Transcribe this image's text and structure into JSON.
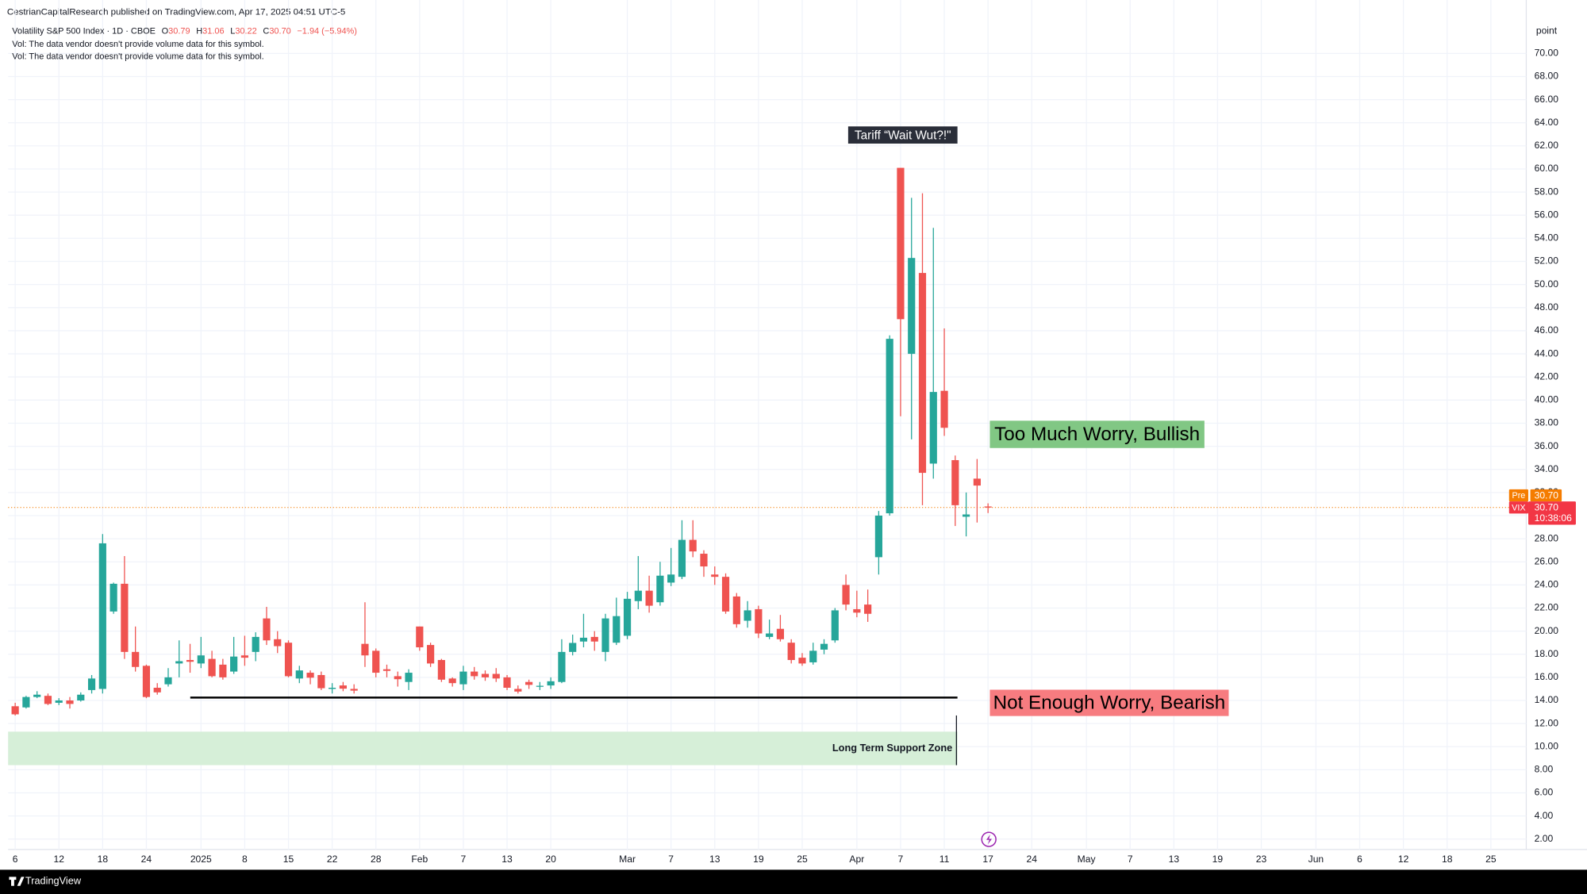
{
  "header": {
    "published": "CestrianCapitalResearch published on TradingView.com, Apr 17, 2025 04:51 UTC-5"
  },
  "footer": {
    "brand": "TradingView"
  },
  "chart_data": {
    "type": "candlestick",
    "legend": {
      "symbol": "Volatility S&P 500 Index · 1D · CBOE",
      "fields": [
        {
          "key": "O",
          "label": "30.79"
        },
        {
          "key": "H",
          "label": "31.06"
        },
        {
          "key": "L",
          "label": "30.22"
        },
        {
          "key": "C",
          "label": "30.70"
        }
      ],
      "change": "−1.94 (−5.94%)",
      "notes": [
        "Vol: The data vendor doesn't provide volume data for this symbol.",
        "Vol: The data vendor doesn't provide volume data for this symbol."
      ]
    },
    "y_unit": "point",
    "categories": [
      "6",
      null,
      null,
      null,
      "12",
      null,
      null,
      null,
      "18",
      null,
      null,
      null,
      "24",
      null,
      null,
      null,
      null,
      "2025",
      null,
      null,
      null,
      "8",
      null,
      null,
      null,
      "15",
      null,
      null,
      null,
      "22",
      null,
      null,
      null,
      "28",
      null,
      null,
      null,
      "Feb",
      null,
      null,
      null,
      "7",
      null,
      null,
      null,
      "13",
      null,
      null,
      null,
      "20",
      null,
      null,
      null,
      null,
      null,
      null,
      "Mar",
      null,
      null,
      null,
      "7",
      null,
      null,
      null,
      "13",
      null,
      null,
      null,
      "19",
      null,
      null,
      null,
      "25",
      null,
      null,
      null,
      null,
      "Apr",
      null,
      null,
      null,
      "7",
      null,
      null,
      null,
      "11",
      null,
      null,
      null,
      "17",
      null,
      null,
      null,
      "24",
      null,
      null,
      null,
      null,
      "May",
      null,
      null,
      null,
      "7",
      null,
      null,
      null,
      "13",
      null,
      null,
      null,
      "19",
      null,
      null,
      null,
      "23",
      null,
      null,
      null,
      null,
      "Jun",
      null,
      null,
      null,
      "6",
      null,
      null,
      null,
      "12",
      null,
      null,
      null,
      "18",
      null,
      null,
      null,
      "25"
    ],
    "open": [
      13.5,
      13.4,
      14.3,
      14.4,
      13.8,
      14.0,
      14.0,
      14.9,
      15.0,
      21.7,
      24.1,
      18.2,
      17.0,
      15.1,
      15.4,
      17.2,
      17.5,
      17.2,
      17.6,
      17.1,
      16.5,
      17.9,
      18.2,
      21.1,
      19.3,
      19.0,
      15.9,
      16.4,
      16.2,
      15.0,
      15.3,
      15.0,
      18.9,
      18.3,
      16.7,
      16.1,
      15.6,
      20.4,
      18.8,
      17.5,
      15.9,
      15.4,
      16.5,
      16.3,
      16.3,
      16.0,
      15.0,
      15.6,
      15.2,
      15.3,
      15.6,
      18.2,
      19.1,
      19.5,
      18.2,
      19.0,
      19.6,
      22.6,
      23.5,
      22.5,
      24.2,
      24.7,
      27.9,
      26.7,
      24.9,
      24.7,
      23.0,
      20.9,
      21.9,
      19.5,
      20.2,
      19.0,
      17.7,
      17.3,
      18.4,
      19.2,
      24.0,
      21.9,
      22.3,
      26.4,
      30.2,
      60.1,
      44.0,
      51.0,
      34.5,
      40.8,
      34.8,
      29.9,
      33.2,
      30.79,
      null,
      null,
      null,
      null,
      null,
      null,
      null,
      null,
      null,
      null,
      null,
      null,
      null,
      null,
      null,
      null,
      null,
      null,
      null,
      null,
      null,
      null,
      null,
      null,
      null,
      null,
      null,
      null,
      null,
      null,
      null,
      null,
      null,
      null,
      null,
      null,
      null,
      null,
      null,
      null,
      null,
      null,
      null,
      null,
      null,
      null
    ],
    "high": [
      13.8,
      14.4,
      14.8,
      14.6,
      14.2,
      14.3,
      14.7,
      16.2,
      28.4,
      24.2,
      26.5,
      20.4,
      17.1,
      15.5,
      16.8,
      19.2,
      18.9,
      19.5,
      18.3,
      17.6,
      19.5,
      19.6,
      19.9,
      22.1,
      20.0,
      19.2,
      17.0,
      16.6,
      16.5,
      15.5,
      15.6,
      15.4,
      22.5,
      18.5,
      17.1,
      16.5,
      16.7,
      20.4,
      19.0,
      17.6,
      16.0,
      17.0,
      16.9,
      16.6,
      16.8,
      16.2,
      15.3,
      15.8,
      15.6,
      16.0,
      19.3,
      19.7,
      21.5,
      20.0,
      21.5,
      22.9,
      23.4,
      26.5,
      24.8,
      26.0,
      27.2,
      29.6,
      29.6,
      27.0,
      25.6,
      25.0,
      23.3,
      22.6,
      22.2,
      21.0,
      21.4,
      19.3,
      18.1,
      19.0,
      19.3,
      22.0,
      24.9,
      23.5,
      23.6,
      30.4,
      45.6,
      60.1,
      57.5,
      57.9,
      54.9,
      46.2,
      35.2,
      32.0,
      34.9,
      31.06,
      null,
      null,
      null,
      null,
      null,
      null,
      null,
      null,
      null,
      null,
      null,
      null,
      null,
      null,
      null,
      null,
      null,
      null,
      null,
      null,
      null,
      null,
      null,
      null,
      null,
      null,
      null,
      null,
      null,
      null,
      null,
      null,
      null,
      null,
      null,
      null,
      null,
      null,
      null,
      null,
      null,
      null,
      null,
      null,
      null,
      null
    ],
    "low": [
      12.7,
      13.3,
      14.2,
      13.6,
      13.6,
      13.3,
      13.9,
      14.6,
      14.6,
      21.5,
      17.6,
      16.5,
      14.2,
      14.5,
      15.2,
      16.0,
      16.4,
      16.8,
      16.0,
      15.8,
      16.3,
      17.0,
      17.4,
      18.8,
      18.1,
      16.0,
      15.5,
      15.4,
      14.9,
      14.6,
      14.8,
      14.6,
      16.9,
      16.0,
      16.0,
      15.2,
      14.9,
      18.3,
      16.9,
      15.6,
      15.2,
      14.9,
      15.8,
      15.7,
      15.6,
      14.9,
      14.6,
      15.0,
      14.9,
      15.0,
      15.5,
      17.9,
      18.6,
      18.3,
      17.4,
      18.8,
      19.3,
      21.9,
      21.6,
      22.2,
      23.9,
      24.5,
      26.4,
      24.7,
      24.0,
      21.5,
      20.3,
      20.3,
      19.4,
      19.3,
      19.1,
      17.2,
      17.0,
      17.1,
      18.0,
      19.0,
      21.8,
      21.2,
      20.8,
      24.9,
      30.0,
      38.6,
      36.6,
      30.9,
      33.2,
      36.9,
      29.1,
      28.2,
      29.4,
      30.22,
      null,
      null,
      null,
      null,
      null,
      null,
      null,
      null,
      null,
      null,
      null,
      null,
      null,
      null,
      null,
      null,
      null,
      null,
      null,
      null,
      null,
      null,
      null,
      null,
      null,
      null,
      null,
      null,
      null,
      null,
      null,
      null,
      null,
      null,
      null,
      null,
      null,
      null,
      null,
      null,
      null,
      null,
      null,
      null,
      null,
      null
    ],
    "close": [
      12.8,
      14.3,
      14.5,
      13.7,
      14.0,
      13.7,
      14.5,
      15.9,
      27.6,
      24.1,
      18.2,
      16.9,
      14.3,
      14.7,
      16.0,
      17.4,
      17.35,
      17.9,
      16.1,
      16.0,
      17.8,
      17.7,
      19.5,
      19.2,
      18.7,
      16.1,
      16.6,
      15.97,
      15.06,
      15.1,
      15.02,
      14.85,
      17.9,
      16.4,
      16.56,
      15.84,
      16.4,
      18.6,
      17.2,
      15.8,
      15.5,
      16.5,
      16.1,
      16.0,
      15.9,
      15.1,
      14.77,
      15.35,
      15.27,
      15.66,
      18.2,
      18.98,
      19.43,
      19.1,
      21.1,
      21.3,
      22.8,
      23.5,
      22.2,
      24.8,
      24.9,
      27.9,
      26.9,
      25.6,
      24.7,
      21.7,
      20.6,
      21.8,
      19.8,
      19.8,
      19.3,
      17.5,
      17.2,
      18.3,
      18.9,
      21.8,
      22.3,
      21.6,
      21.5,
      30.0,
      45.3,
      47.0,
      52.3,
      33.7,
      40.7,
      37.6,
      30.9,
      30.1,
      32.6,
      30.7,
      null,
      null,
      null,
      null,
      null,
      null,
      null,
      null,
      null,
      null,
      null,
      null,
      null,
      null,
      null,
      null,
      null,
      null,
      null,
      null,
      null,
      null,
      null,
      null,
      null,
      null,
      null,
      null,
      null,
      null,
      null,
      null,
      null,
      null,
      null,
      null,
      null,
      null,
      null,
      null,
      null,
      null,
      null,
      null,
      null,
      null
    ],
    "up_color": "#26a69a",
    "down_color": "#ef5350",
    "ylim": [
      1.1,
      72.7
    ],
    "yticks": [
      {
        "value": 2,
        "label": "2.00"
      },
      {
        "value": 4,
        "label": "4.00"
      },
      {
        "value": 6,
        "label": "6.00"
      },
      {
        "value": 8,
        "label": "8.00"
      },
      {
        "value": 10,
        "label": "10.00"
      },
      {
        "value": 12,
        "label": "12.00"
      },
      {
        "value": 14,
        "label": "14.00"
      },
      {
        "value": 16,
        "label": "16.00"
      },
      {
        "value": 18,
        "label": "18.00"
      },
      {
        "value": 20,
        "label": "20.00"
      },
      {
        "value": 22,
        "label": "22.00"
      },
      {
        "value": 24,
        "label": "24.00"
      },
      {
        "value": 26,
        "label": "26.00"
      },
      {
        "value": 28,
        "label": "28.00"
      },
      {
        "value": 30,
        "label": "30.00"
      },
      {
        "value": 32,
        "label": "32.00"
      },
      {
        "value": 34,
        "label": "34.00"
      },
      {
        "value": 36,
        "label": "36.00"
      },
      {
        "value": 38,
        "label": "38.00"
      },
      {
        "value": 40,
        "label": "40.00"
      },
      {
        "value": 42,
        "label": "42.00"
      },
      {
        "value": 44,
        "label": "44.00"
      },
      {
        "value": 46,
        "label": "46.00"
      },
      {
        "value": 48,
        "label": "48.00"
      },
      {
        "value": 50,
        "label": "50.00"
      },
      {
        "value": 52,
        "label": "52.00"
      },
      {
        "value": 54,
        "label": "54.00"
      },
      {
        "value": 56,
        "label": "56.00"
      },
      {
        "value": 58,
        "label": "58.00"
      },
      {
        "value": 60,
        "label": "60.00"
      },
      {
        "value": 62,
        "label": "62.00"
      },
      {
        "value": 64,
        "label": "64.00"
      },
      {
        "value": 66,
        "label": "66.00"
      },
      {
        "value": 68,
        "label": "68.00"
      },
      {
        "value": 70,
        "label": "70.00"
      }
    ],
    "grid": true,
    "price_tags": [
      {
        "name": "Pre",
        "value": 30.7,
        "label": "30.70",
        "color": "#f57c00"
      },
      {
        "name": "VIX",
        "value": 30.7,
        "label": "30.70",
        "countdown": "10:38:06",
        "color": "#f23645"
      }
    ],
    "level_line": {
      "value": 14.25,
      "color": "#000000"
    },
    "support_zone": {
      "low": 8.4,
      "high": 11.3,
      "label": "Long Term Support Zone",
      "color": "#d6efd8"
    },
    "annotations": [
      {
        "text": "Tariff “Wait Wut?!\"",
        "background": "#2a2e39",
        "text_color": "#ffffff"
      },
      {
        "text": "Too Much Worry, Bullish",
        "background": "#81c784",
        "text_color": "#000000"
      },
      {
        "text": "Not Enough Worry, Bearish",
        "background": "#f77c80",
        "text_color": "#000000"
      }
    ]
  }
}
